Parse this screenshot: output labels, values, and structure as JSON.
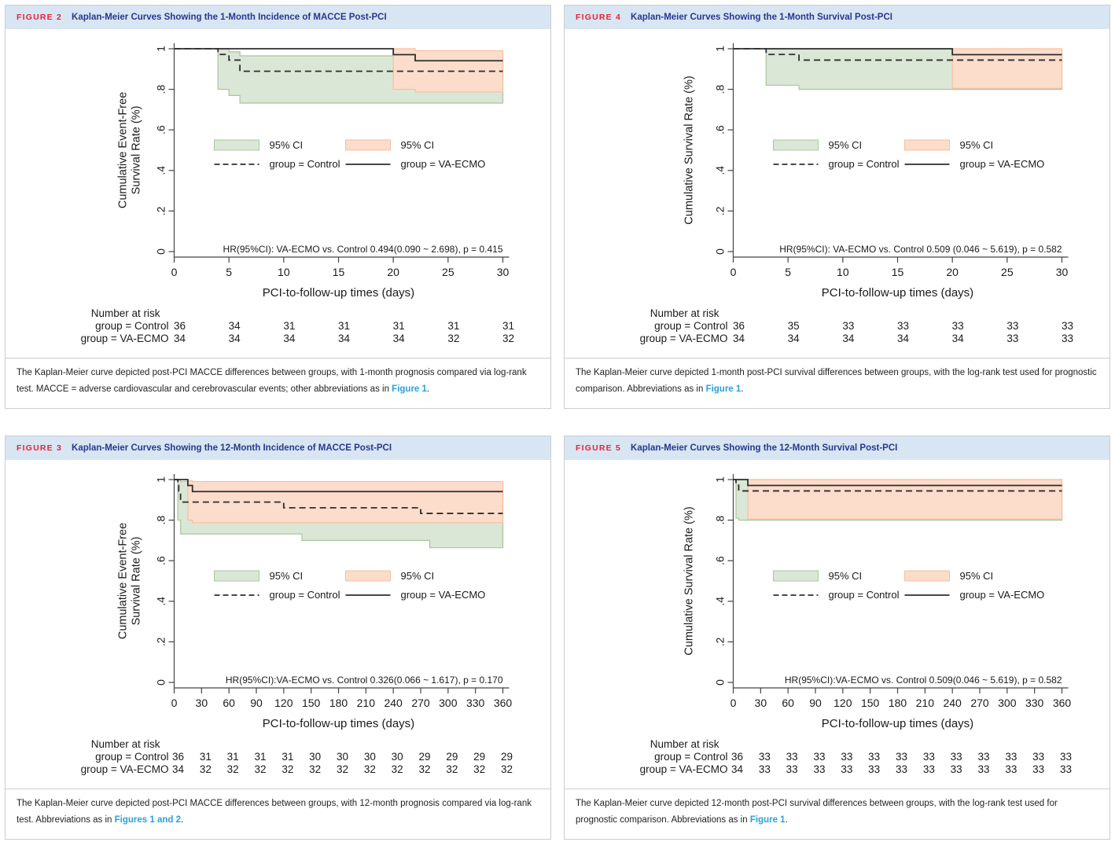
{
  "colors": {
    "header_bg": "#d8e6f3",
    "figure_label_red": "#e62336",
    "title_navy": "#28378f",
    "link_blue": "#2aa1d8",
    "ci_green": "#dbe7d6",
    "ci_green_edge": "#a9c49e",
    "ci_orange": "#fcdccb",
    "ci_orange_edge": "#f6bfa0",
    "curve": "#2e2e2e",
    "axis": "#444444"
  },
  "panels": [
    {
      "figure_label": "FIGURE 2",
      "title": "Kaplan-Meier Curves Showing the 1-Month Incidence of MACCE Post-PCI",
      "caption": [
        {
          "text": "The Kaplan-Meier curve depicted post-PCI MACCE differences between groups, with 1-month prognosis compared via log-rank test. MACCE = adverse cardiovascular and cerebrovascular events; other abbreviations as in "
        },
        {
          "text": "Figure 1",
          "link": true
        },
        {
          "text": "."
        }
      ]
    },
    {
      "figure_label": "FIGURE 4",
      "title": "Kaplan-Meier Curves Showing the 1-Month Survival Post-PCI",
      "caption": [
        {
          "text": "The Kaplan-Meier curve depicted 1-month post-PCI survival differences between groups, with the log-rank test used for prognostic comparison. Abbreviations as in "
        },
        {
          "text": "Figure 1",
          "link": true
        },
        {
          "text": "."
        }
      ]
    },
    {
      "figure_label": "FIGURE 3",
      "title": "Kaplan-Meier Curves Showing the 12-Month Incidence of MACCE Post-PCI",
      "caption": [
        {
          "text": "The Kaplan-Meier curve depicted post-PCI MACCE differences between groups, with 12-month prognosis compared via log-rank test. Abbreviations as in "
        },
        {
          "text": "Figures 1 and 2",
          "link": true
        },
        {
          "text": "."
        }
      ]
    },
    {
      "figure_label": "FIGURE 5",
      "title": "Kaplan-Meier Curves Showing the 12-Month Survival Post-PCI",
      "caption": [
        {
          "text": "The Kaplan-Meier curve depicted 12-month post-PCI survival differences between groups, with the log-rank test used for prognostic comparison. Abbreviations as in "
        },
        {
          "text": "Figure 1",
          "link": true
        },
        {
          "text": "."
        }
      ]
    }
  ],
  "chart_data": [
    {
      "type": "line",
      "subtype": "kaplan-meier",
      "title": "Kaplan-Meier Curves Showing the 1-Month Incidence of MACCE Post-PCI",
      "ylabel": "Cumulative Event-Free Survival Rate (%)",
      "ylabel_lines": [
        "Cumulative Event-Free",
        "Survival Rate (%)"
      ],
      "xlabel": "PCI-to-follow-up times (days)",
      "xlim": [
        0,
        30
      ],
      "ylim": [
        0,
        1
      ],
      "xticks": [
        0,
        5,
        10,
        15,
        20,
        25,
        30
      ],
      "yticks": [
        0,
        0.2,
        0.4,
        0.6,
        0.8,
        1
      ],
      "ytick_labels": [
        "0",
        ".2",
        ".4",
        ".6",
        ".8",
        "1"
      ],
      "grid": false,
      "legend_position": "center",
      "hr_annotation": "HR(95%CI): VA-ECMO vs. Control 0.494(0.090 ~ 2.698), p = 0.415",
      "legend": {
        "ci_control": "95% CI",
        "control": "group = Control",
        "ci_ecmo": "95% CI",
        "ecmo": "group = VA-ECMO"
      },
      "series": [
        {
          "name": "group = Control",
          "style": "dashed",
          "steps": [
            [
              0,
              1
            ],
            [
              4,
              0.972
            ],
            [
              5,
              0.944
            ],
            [
              6,
              0.889
            ]
          ]
        },
        {
          "name": "group = VA-ECMO",
          "style": "solid",
          "steps": [
            [
              0,
              1
            ],
            [
              20,
              0.971
            ],
            [
              22,
              0.941
            ]
          ]
        }
      ],
      "bands": [
        {
          "name": "control-95ci",
          "color": "green",
          "steps": [
            [
              4,
              1.0,
              0.8
            ],
            [
              5,
              0.985,
              0.77
            ],
            [
              6,
              0.965,
              0.732
            ]
          ]
        },
        {
          "name": "va-ecmo-95ci",
          "color": "orange",
          "steps": [
            [
              20,
              1.0,
              0.8
            ],
            [
              22,
              0.99,
              0.787
            ]
          ]
        }
      ],
      "number_at_risk": {
        "title": "Number at risk",
        "rows": [
          {
            "label": "group = Control",
            "values": [
              36,
              34,
              31,
              31,
              31,
              31,
              31
            ]
          },
          {
            "label": "group = VA-ECMO",
            "values": [
              34,
              34,
              34,
              34,
              34,
              32,
              32
            ]
          }
        ]
      }
    },
    {
      "type": "line",
      "subtype": "kaplan-meier",
      "title": "Kaplan-Meier Curves Showing the 1-Month Survival Post-PCI",
      "ylabel": "Cumulative Survival Rate (%)",
      "ylabel_lines": [
        "Cumulative Survival Rate (%)"
      ],
      "xlabel": "PCI-to-follow-up times (days)",
      "xlim": [
        0,
        30
      ],
      "ylim": [
        0,
        1
      ],
      "xticks": [
        0,
        5,
        10,
        15,
        20,
        25,
        30
      ],
      "yticks": [
        0,
        0.2,
        0.4,
        0.6,
        0.8,
        1
      ],
      "ytick_labels": [
        "0",
        ".2",
        ".4",
        ".6",
        ".8",
        "1"
      ],
      "grid": false,
      "legend_position": "center",
      "hr_annotation": "HR(95%CI): VA-ECMO vs. Control 0.509 (0.046 ~ 5.619), p = 0.582",
      "legend": {
        "ci_control": "95% CI",
        "control": "group = Control",
        "ci_ecmo": "95% CI",
        "ecmo": "group = VA-ECMO"
      },
      "series": [
        {
          "name": "group = Control",
          "style": "dashed",
          "steps": [
            [
              0,
              1
            ],
            [
              3,
              0.972
            ],
            [
              6,
              0.944
            ]
          ]
        },
        {
          "name": "group = VA-ECMO",
          "style": "solid",
          "steps": [
            [
              0,
              1
            ],
            [
              20,
              0.971
            ]
          ]
        }
      ],
      "bands": [
        {
          "name": "control-95ci",
          "color": "green",
          "steps": [
            [
              3,
              1.0,
              0.82
            ],
            [
              6,
              0.998,
              0.8
            ]
          ]
        },
        {
          "name": "va-ecmo-95ci",
          "color": "orange",
          "steps": [
            [
              20,
              1.0,
              0.805
            ]
          ]
        }
      ],
      "number_at_risk": {
        "title": "Number at risk",
        "rows": [
          {
            "label": "group = Control",
            "values": [
              36,
              35,
              33,
              33,
              33,
              33,
              33
            ]
          },
          {
            "label": "group = VA-ECMO",
            "values": [
              34,
              34,
              34,
              34,
              34,
              33,
              33
            ]
          }
        ]
      }
    },
    {
      "type": "line",
      "subtype": "kaplan-meier",
      "title": "Kaplan-Meier Curves Showing the 12-Month Incidence of MACCE Post-PCI",
      "ylabel": "Cumulative Event-Free Survival Rate (%)",
      "ylabel_lines": [
        "Cumulative Event-Free",
        "Survival Rate (%)"
      ],
      "xlabel": "PCI-to-follow-up times (days)",
      "xlim": [
        0,
        360
      ],
      "ylim": [
        0,
        1
      ],
      "xticks": [
        0,
        30,
        60,
        90,
        120,
        150,
        180,
        210,
        240,
        270,
        300,
        330,
        360
      ],
      "yticks": [
        0,
        0.2,
        0.4,
        0.6,
        0.8,
        1
      ],
      "ytick_labels": [
        "0",
        ".2",
        ".4",
        ".6",
        ".8",
        "1"
      ],
      "grid": false,
      "legend_position": "center",
      "hr_annotation": "HR(95%CI):VA-ECMO vs. Control 0.326(0.066 ~ 1.617), p = 0.170",
      "legend": {
        "ci_control": "95% CI",
        "control": "group = Control",
        "ci_ecmo": "95% CI",
        "ecmo": "group = VA-ECMO"
      },
      "series": [
        {
          "name": "group = Control",
          "style": "dashed",
          "steps": [
            [
              0,
              1
            ],
            [
              4,
              0.972
            ],
            [
              5,
              0.944
            ],
            [
              7,
              0.889
            ],
            [
              120,
              0.861
            ],
            [
              270,
              0.833
            ]
          ]
        },
        {
          "name": "group = VA-ECMO",
          "style": "solid",
          "steps": [
            [
              0,
              1
            ],
            [
              15,
              0.971
            ],
            [
              20,
              0.941
            ]
          ]
        }
      ],
      "bands": [
        {
          "name": "control-95ci",
          "color": "green",
          "steps": [
            [
              4,
              1.0,
              0.8
            ],
            [
              7,
              0.99,
              0.732
            ],
            [
              140,
              0.99,
              0.7
            ],
            [
              280,
              0.99,
              0.664
            ]
          ]
        },
        {
          "name": "va-ecmo-95ci",
          "color": "orange",
          "steps": [
            [
              15,
              0.995,
              0.8
            ],
            [
              20,
              0.99,
              0.787
            ]
          ]
        }
      ],
      "number_at_risk": {
        "title": "Number at risk",
        "rows": [
          {
            "label": "group = Control",
            "values": [
              36,
              31,
              31,
              31,
              31,
              30,
              30,
              30,
              30,
              29,
              29,
              29,
              29
            ]
          },
          {
            "label": "group = VA-ECMO",
            "values": [
              34,
              32,
              32,
              32,
              32,
              32,
              32,
              32,
              32,
              32,
              32,
              32,
              32
            ]
          }
        ]
      }
    },
    {
      "type": "line",
      "subtype": "kaplan-meier",
      "title": "Kaplan-Meier Curves Showing the 12-Month Survival Post-PCI",
      "ylabel": "Cumulative Survival Rate (%)",
      "ylabel_lines": [
        "Cumulative Survival Rate (%)"
      ],
      "xlabel": "PCI-to-follow-up times (days)",
      "xlim": [
        0,
        360
      ],
      "ylim": [
        0,
        1
      ],
      "xticks": [
        0,
        30,
        60,
        90,
        120,
        150,
        180,
        210,
        240,
        270,
        300,
        330,
        360
      ],
      "yticks": [
        0,
        0.2,
        0.4,
        0.6,
        0.8,
        1
      ],
      "ytick_labels": [
        "0",
        ".2",
        ".4",
        ".6",
        ".8",
        "1"
      ],
      "grid": false,
      "legend_position": "center",
      "hr_annotation": "HR(95%CI):VA-ECMO vs. Control 0.509(0.046 ~ 5.619), p = 0.582",
      "legend": {
        "ci_control": "95% CI",
        "control": "group = Control",
        "ci_ecmo": "95% CI",
        "ecmo": "group = VA-ECMO"
      },
      "series": [
        {
          "name": "group = Control",
          "style": "dashed",
          "steps": [
            [
              0,
              1
            ],
            [
              3,
              0.972
            ],
            [
              6,
              0.944
            ]
          ]
        },
        {
          "name": "group = VA-ECMO",
          "style": "solid",
          "steps": [
            [
              0,
              1
            ],
            [
              16,
              0.971
            ]
          ]
        }
      ],
      "bands": [
        {
          "name": "control-95ci",
          "color": "green",
          "steps": [
            [
              3,
              1.0,
              0.81
            ],
            [
              6,
              1.0,
              0.8
            ]
          ]
        },
        {
          "name": "va-ecmo-95ci",
          "color": "orange",
          "steps": [
            [
              16,
              1.0,
              0.805
            ]
          ]
        }
      ],
      "number_at_risk": {
        "title": "Number at risk",
        "rows": [
          {
            "label": "group = Control",
            "values": [
              36,
              33,
              33,
              33,
              33,
              33,
              33,
              33,
              33,
              33,
              33,
              33,
              33
            ]
          },
          {
            "label": "group = VA-ECMO",
            "values": [
              34,
              33,
              33,
              33,
              33,
              33,
              33,
              33,
              33,
              33,
              33,
              33,
              33
            ]
          }
        ]
      }
    }
  ]
}
